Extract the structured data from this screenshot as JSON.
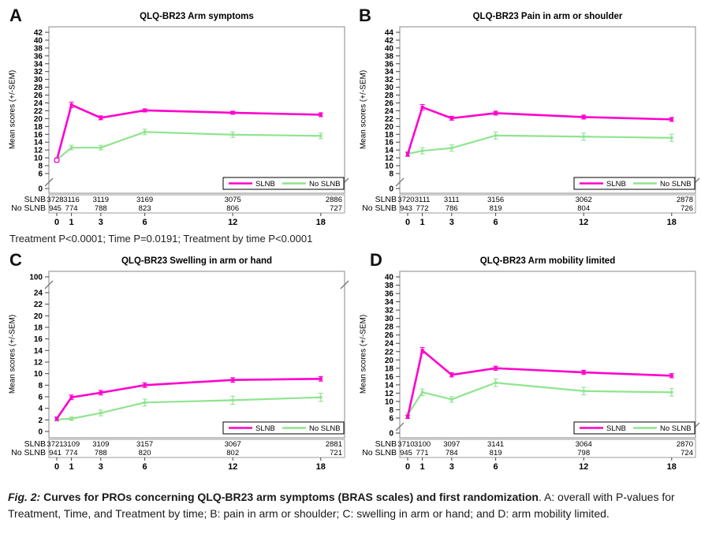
{
  "figure": {
    "pvalue_note": "Treatment P<0.0001; Time P=0.0191; Treatment by time P<0.0001",
    "caption_fig": "Fig. 2:",
    "caption_bold": " Curves for PROs concerning QLQ-BR23 arm symptoms (BRAS scales) and first randomization",
    "caption_rest": ". A: overall with P-values for Treatment, Time, and Treatment by time; B: pain in arm or shoulder; C: swelling in arm or hand; and D: arm mobility limited."
  },
  "colors": {
    "slnb": "#FF00CC",
    "no_slnb": "#8FE48F",
    "box_border": "#9B9B9B"
  },
  "legend": {
    "slnb_label": "SLNB",
    "no_slnb_label": "No SLNB"
  },
  "chart_data": [
    {
      "type": "line",
      "panel": "A",
      "title": "QLQ-BR23 Arm symptoms",
      "ylabel": "Mean scores (+/-SEM)",
      "x": [
        0,
        1,
        3,
        6,
        12,
        18
      ],
      "y_axis": {
        "main_min": 6,
        "main_max": 42,
        "step": 2,
        "break_at": "bottom",
        "extra_tick": 0
      },
      "baseline_marker": "open-circle",
      "series": [
        {
          "name": "SLNB",
          "values": [
            9.4,
            23.5,
            20.2,
            22.1,
            21.5,
            21.0
          ],
          "sem": [
            0.5,
            0.7,
            0.5,
            0.4,
            0.4,
            0.5
          ]
        },
        {
          "name": "No SLNB",
          "values": [
            9.5,
            12.6,
            12.6,
            16.6,
            15.9,
            15.6
          ],
          "sem": [
            0.5,
            0.6,
            0.6,
            0.7,
            0.7,
            0.7
          ]
        }
      ],
      "at_risk": {
        "row_labels": [
          "SLNB",
          "No SLNB"
        ],
        "rows": [
          [
            3728,
            3116,
            3119,
            3169,
            3075,
            2886
          ],
          [
            945,
            774,
            788,
            823,
            806,
            727
          ]
        ]
      }
    },
    {
      "type": "line",
      "panel": "B",
      "title": "QLQ-BR23 Pain in arm or shoulder",
      "ylabel": "Mean scores (+/-SEM)",
      "x": [
        0,
        1,
        3,
        6,
        12,
        18
      ],
      "y_axis": {
        "main_min": 8,
        "main_max": 44,
        "step": 2,
        "break_at": "bottom",
        "extra_tick": 0
      },
      "series": [
        {
          "name": "SLNB",
          "values": [
            12.9,
            24.9,
            22.1,
            23.4,
            22.4,
            21.8
          ],
          "sem": [
            0.5,
            0.7,
            0.5,
            0.5,
            0.5,
            0.5
          ]
        },
        {
          "name": "No SLNB",
          "values": [
            13.0,
            13.8,
            14.5,
            17.7,
            17.4,
            17.1
          ],
          "sem": [
            0.6,
            0.8,
            0.8,
            0.9,
            0.9,
            0.9
          ]
        }
      ],
      "at_risk": {
        "row_labels": [
          "SLNB",
          "No SLNB"
        ],
        "rows": [
          [
            3720,
            3111,
            3111,
            3156,
            3062,
            2878
          ],
          [
            943,
            772,
            786,
            819,
            804,
            726
          ]
        ]
      }
    },
    {
      "type": "line",
      "panel": "C",
      "title": "QLQ-BR23 Swelling in arm or hand",
      "ylabel": "Mean scores (+/-SEM)",
      "x": [
        0,
        1,
        3,
        6,
        12,
        18
      ],
      "y_axis": {
        "main_min": 0,
        "main_max": 24,
        "step": 2,
        "break_at": "top",
        "extra_tick": 100
      },
      "series": [
        {
          "name": "SLNB",
          "values": [
            2.2,
            5.9,
            6.7,
            8.0,
            8.9,
            9.1
          ],
          "sem": [
            0.3,
            0.4,
            0.4,
            0.4,
            0.4,
            0.4
          ]
        },
        {
          "name": "No SLNB",
          "values": [
            2.1,
            2.2,
            3.2,
            5.0,
            5.4,
            5.9
          ],
          "sem": [
            0.3,
            0.3,
            0.5,
            0.6,
            0.7,
            0.7
          ]
        }
      ],
      "at_risk": {
        "row_labels": [
          "SLNB",
          "No SLNB"
        ],
        "rows": [
          [
            3721,
            3109,
            3109,
            3157,
            3067,
            2881
          ],
          [
            941,
            774,
            788,
            820,
            802,
            721
          ]
        ]
      }
    },
    {
      "type": "line",
      "panel": "D",
      "title": "QLQ-BR23 Arm mobility limited",
      "ylabel": "Mean scores (+/-SEM)",
      "x": [
        0,
        1,
        3,
        6,
        12,
        18
      ],
      "y_axis": {
        "main_min": 6,
        "main_max": 40,
        "step": 2,
        "break_at": "bottom",
        "extra_tick": 0
      },
      "series": [
        {
          "name": "SLNB",
          "values": [
            6.3,
            22.3,
            16.4,
            18.0,
            17.0,
            16.2
          ],
          "sem": [
            0.4,
            0.7,
            0.5,
            0.5,
            0.5,
            0.5
          ]
        },
        {
          "name": "No SLNB",
          "values": [
            6.8,
            12.2,
            10.5,
            14.5,
            12.5,
            12.2
          ],
          "sem": [
            0.5,
            0.8,
            0.7,
            0.9,
            0.9,
            0.9
          ]
        }
      ],
      "at_risk": {
        "row_labels": [
          "SLNB",
          "No SLNB"
        ],
        "rows": [
          [
            3710,
            3100,
            3097,
            3141,
            3064,
            2870
          ],
          [
            945,
            771,
            784,
            819,
            798,
            724
          ]
        ]
      }
    }
  ]
}
